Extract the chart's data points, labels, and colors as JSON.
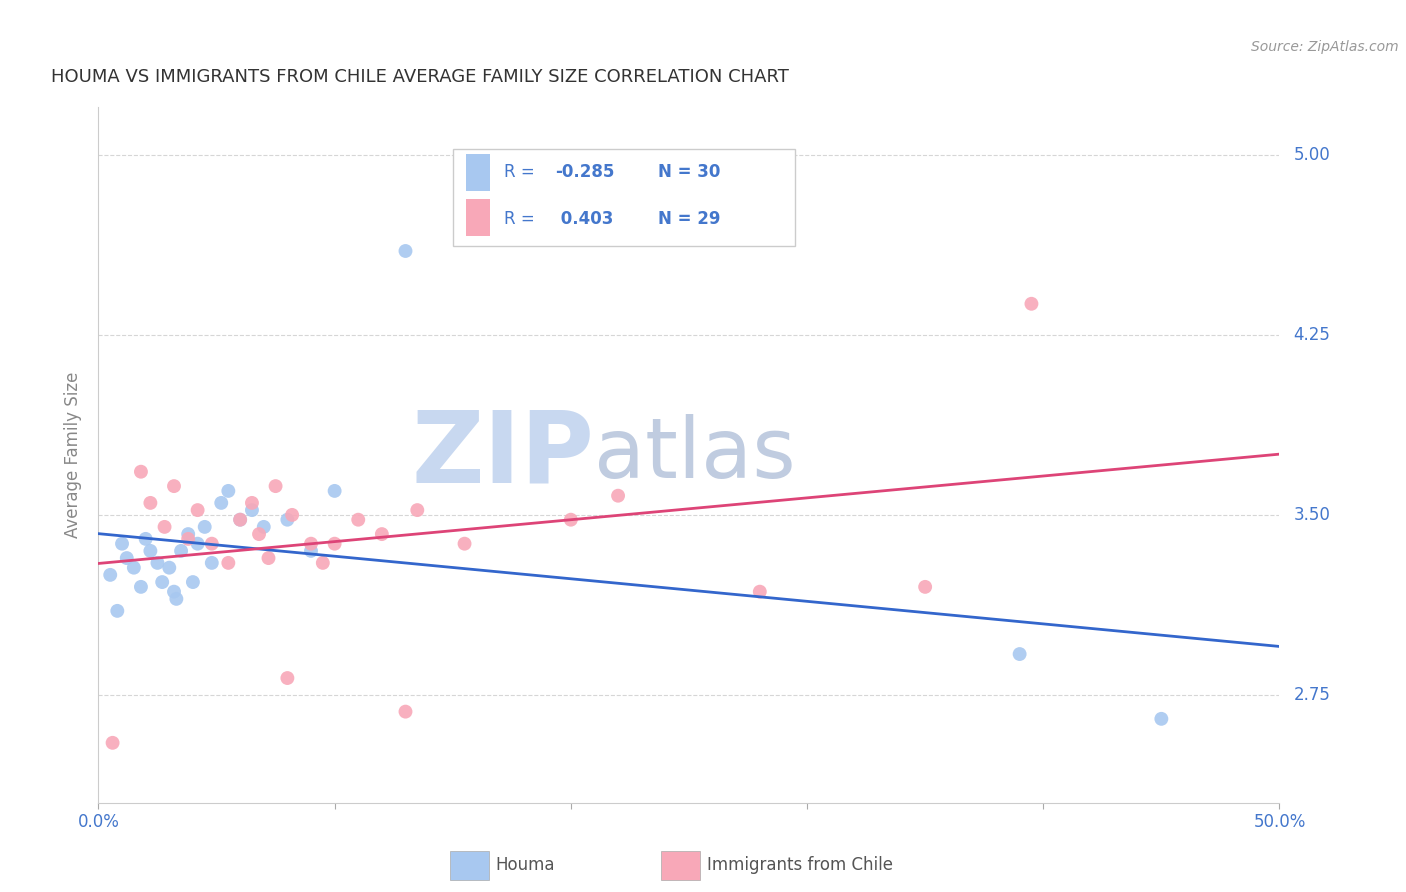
{
  "title": "HOUMA VS IMMIGRANTS FROM CHILE AVERAGE FAMILY SIZE CORRELATION CHART",
  "source_text": "Source: ZipAtlas.com",
  "ylabel": "Average Family Size",
  "xlim": [
    0.0,
    0.5
  ],
  "ylim": [
    2.3,
    5.2
  ],
  "yticks": [
    2.75,
    3.5,
    4.25,
    5.0
  ],
  "xticks": [
    0.0,
    0.1,
    0.2,
    0.3,
    0.4,
    0.5
  ],
  "xtick_labels": [
    "0.0%",
    "",
    "",
    "",
    "",
    "50.0%"
  ],
  "legend_label1": "Houma",
  "legend_label2": "Immigrants from Chile",
  "r1_text": "-0.285",
  "n1": 30,
  "r2_text": "0.403",
  "n2": 29,
  "color1": "#A8C8F0",
  "color2": "#F8A8B8",
  "line_color1": "#3366CC",
  "line_color2": "#DD4477",
  "watermark1": "ZIP",
  "watermark2": "atlas",
  "watermark_color1": "#C8D8F0",
  "watermark_color2": "#C0CCE0",
  "background_color": "#FFFFFF",
  "grid_color": "#CCCCCC",
  "title_color": "#333333",
  "tick_label_color": "#4477CC",
  "legend_text_color": "#4477CC",
  "houma_x": [
    0.005,
    0.008,
    0.01,
    0.012,
    0.015,
    0.018,
    0.02,
    0.022,
    0.025,
    0.027,
    0.03,
    0.032,
    0.033,
    0.035,
    0.038,
    0.04,
    0.042,
    0.045,
    0.048,
    0.052,
    0.055,
    0.06,
    0.065,
    0.07,
    0.08,
    0.09,
    0.1,
    0.13,
    0.39,
    0.45
  ],
  "houma_y": [
    3.25,
    3.1,
    3.38,
    3.32,
    3.28,
    3.2,
    3.4,
    3.35,
    3.3,
    3.22,
    3.28,
    3.18,
    3.15,
    3.35,
    3.42,
    3.22,
    3.38,
    3.45,
    3.3,
    3.55,
    3.6,
    3.48,
    3.52,
    3.45,
    3.48,
    3.35,
    3.6,
    4.6,
    2.92,
    2.65
  ],
  "chile_x": [
    0.006,
    0.018,
    0.022,
    0.028,
    0.032,
    0.038,
    0.042,
    0.048,
    0.055,
    0.06,
    0.065,
    0.068,
    0.072,
    0.075,
    0.082,
    0.09,
    0.095,
    0.1,
    0.11,
    0.12,
    0.135,
    0.155,
    0.2,
    0.22,
    0.28,
    0.35,
    0.395,
    0.08,
    0.13
  ],
  "chile_y": [
    2.55,
    3.68,
    3.55,
    3.45,
    3.62,
    3.4,
    3.52,
    3.38,
    3.3,
    3.48,
    3.55,
    3.42,
    3.32,
    3.62,
    3.5,
    3.38,
    3.3,
    3.38,
    3.48,
    3.42,
    3.52,
    3.38,
    3.48,
    3.58,
    3.18,
    3.2,
    4.38,
    2.82,
    2.68
  ]
}
